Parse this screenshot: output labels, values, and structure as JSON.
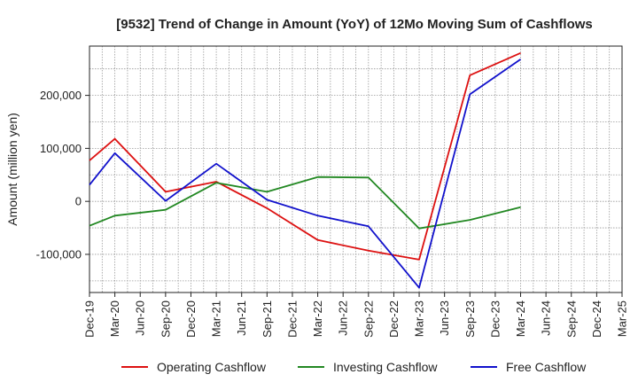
{
  "chart_data": {
    "type": "line",
    "title": "[9532]  Trend of Change in Amount (YoY) of 12Mo Moving Sum of Cashflows",
    "xlabel": "",
    "ylabel": "Amount (million yen)",
    "categories": [
      "Dec-19",
      "Mar-20",
      "Jun-20",
      "Sep-20",
      "Dec-20",
      "Mar-21",
      "Jun-21",
      "Sep-21",
      "Dec-21",
      "Mar-22",
      "Jun-22",
      "Sep-22",
      "Dec-22",
      "Mar-23",
      "Jun-23",
      "Sep-23",
      "Dec-23",
      "Mar-24",
      "Jun-24",
      "Sep-24",
      "Dec-24",
      "Mar-25"
    ],
    "y_ticks": [
      -100000,
      0,
      100000,
      200000
    ],
    "y_tick_labels": [
      "-100,000",
      "0",
      "100,000",
      "200,000"
    ],
    "ylim": [
      -172000,
      293000
    ],
    "grid": true,
    "legend_position": "bottom",
    "series": [
      {
        "name": "Operating Cashflow",
        "color": "#dd1111",
        "values": [
          77000,
          118000,
          null,
          18000,
          null,
          37000,
          null,
          -13000,
          null,
          -73000,
          null,
          -93000,
          null,
          -110000,
          null,
          238000,
          null,
          280000,
          null,
          null,
          null,
          null
        ]
      },
      {
        "name": "Investing Cashflow",
        "color": "#228822",
        "values": [
          -46000,
          -27000,
          null,
          -16000,
          null,
          35000,
          null,
          18000,
          null,
          46000,
          null,
          45000,
          null,
          -51000,
          null,
          -35000,
          null,
          -11000,
          null,
          null,
          null,
          null
        ]
      },
      {
        "name": "Free Cashflow",
        "color": "#1111cc",
        "values": [
          31000,
          91000,
          null,
          1000,
          null,
          71000,
          null,
          3000,
          null,
          -27000,
          null,
          -47000,
          null,
          -163000,
          null,
          202000,
          null,
          268000,
          null,
          null,
          null,
          null
        ]
      }
    ]
  }
}
